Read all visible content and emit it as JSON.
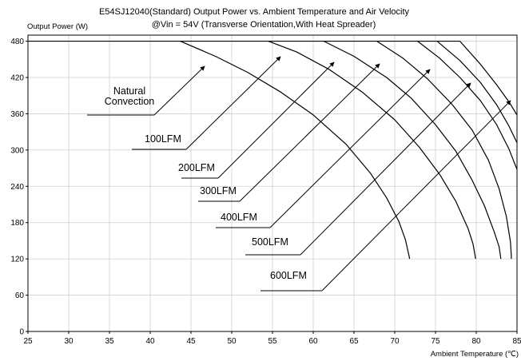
{
  "chart_data": {
    "type": "line",
    "title": "E54SJ12040(Standard)  Output Power vs. Ambient Temperature and Air Velocity",
    "subtitle": "@Vin = 54V (Transverse Orientation,With Heat Spreader)",
    "xlabel": "Ambient Temperature (℃)",
    "ylabel": "Output Power (W)",
    "xlim": [
      25,
      85
    ],
    "ylim": [
      0,
      490
    ],
    "xticks": [
      25,
      30,
      35,
      40,
      45,
      50,
      55,
      60,
      65,
      70,
      75,
      80,
      85
    ],
    "yticks": [
      0,
      60,
      120,
      180,
      240,
      300,
      360,
      420,
      480
    ],
    "grid": true,
    "line_color": "#000000",
    "series": [
      {
        "name": "Natural Convection",
        "x": [
          43.7,
          48,
          52,
          56,
          60,
          64,
          67,
          69,
          70.5,
          71.3,
          71.8,
          71.8
        ],
        "y": [
          480,
          455,
          428,
          396,
          358,
          310,
          262,
          221,
          182,
          152,
          122,
          120
        ]
      },
      {
        "name": "100LFM",
        "x": [
          54.5,
          58,
          62,
          66,
          70,
          73,
          75.5,
          77.5,
          79,
          79.6,
          79.9,
          79.9
        ],
        "y": [
          480,
          462,
          433,
          396,
          350,
          305,
          260,
          215,
          170,
          145,
          122,
          120
        ]
      },
      {
        "name": "200LFM",
        "x": [
          61.3,
          65,
          69,
          72,
          75,
          77.5,
          79.5,
          81,
          82.2,
          82.8,
          83,
          83
        ],
        "y": [
          480,
          455,
          420,
          386,
          342,
          298,
          250,
          208,
          165,
          140,
          122,
          120
        ]
      },
      {
        "name": "300LFM",
        "x": [
          67.8,
          71,
          74,
          77,
          79.5,
          81.5,
          82.8,
          83.7,
          84.2,
          84.3,
          84.3
        ],
        "y": [
          480,
          452,
          418,
          376,
          333,
          283,
          236,
          190,
          148,
          125,
          120
        ]
      },
      {
        "name": "400LFM",
        "x": [
          72.8,
          75.5,
          78,
          80.5,
          82.5,
          84,
          85
        ],
        "y": [
          480,
          452,
          420,
          382,
          342,
          302,
          268
        ]
      },
      {
        "name": "500LFM",
        "x": [
          75.2,
          78,
          80.5,
          82.5,
          84,
          85
        ],
        "y": [
          480,
          448,
          412,
          375,
          340,
          312
        ]
      },
      {
        "name": "600LFM",
        "x": [
          78,
          80.5,
          82.5,
          84,
          85
        ],
        "y": [
          480,
          442,
          408,
          380,
          358
        ]
      }
    ],
    "annotations": [
      {
        "text": "Natural\nConvection",
        "points_to_series": "Natural Convection"
      },
      {
        "text": "100LFM",
        "points_to_series": "100LFM"
      },
      {
        "text": "200LFM",
        "points_to_series": "200LFM"
      },
      {
        "text": "300LFM",
        "points_to_series": "300LFM"
      },
      {
        "text": "400LFM",
        "points_to_series": "400LFM"
      },
      {
        "text": "500LFM",
        "points_to_series": "500LFM"
      },
      {
        "text": "600LFM",
        "points_to_series": "600LFM"
      }
    ]
  }
}
